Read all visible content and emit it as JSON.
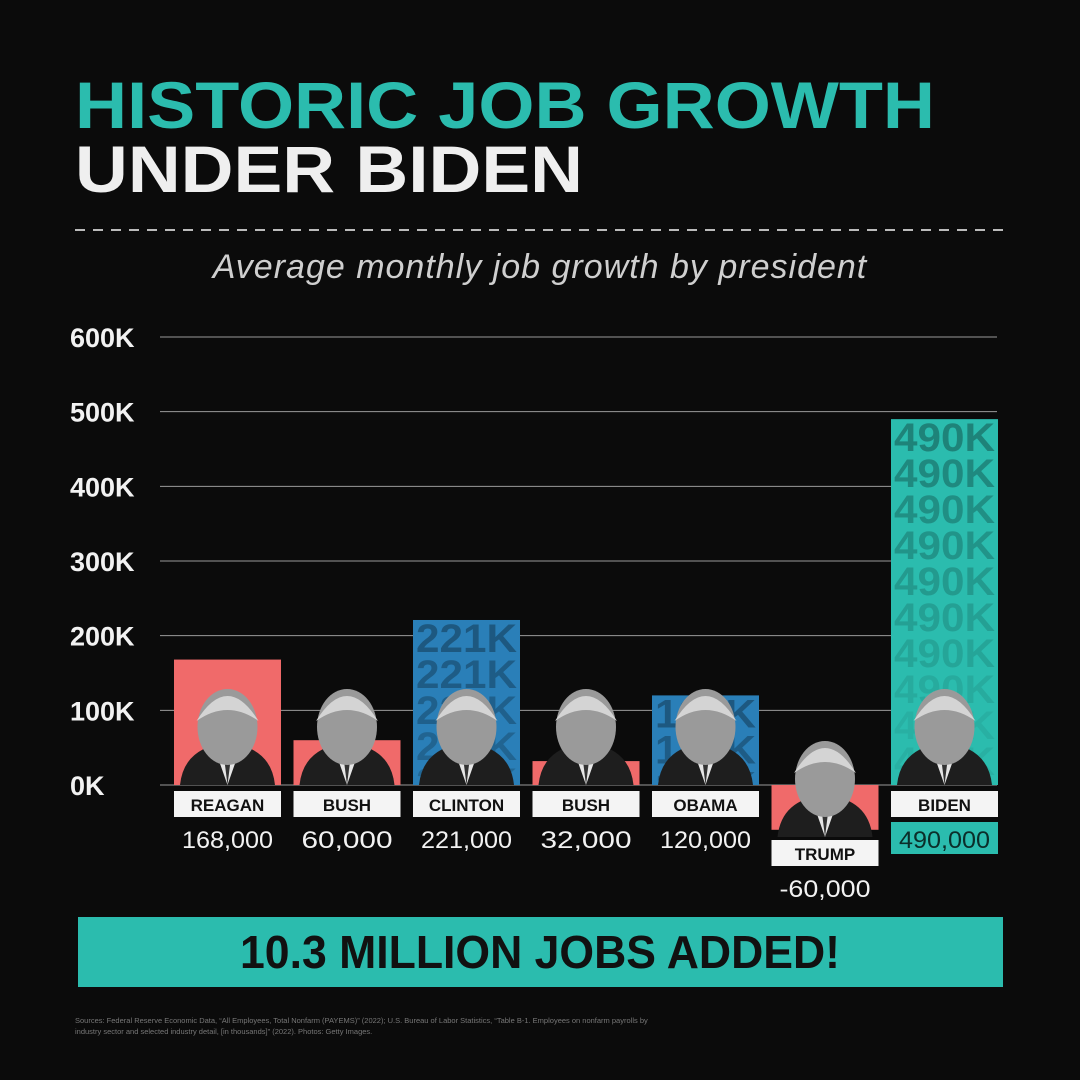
{
  "chart_data": {
    "type": "bar",
    "title": [
      "HISTORIC JOB GROWTH",
      "UNDER BIDEN"
    ],
    "subtitle": "Average monthly job growth by president",
    "categories": [
      "REAGAN",
      "BUSH",
      "CLINTON",
      "BUSH",
      "OBAMA",
      "TRUMP",
      "BIDEN"
    ],
    "values": [
      168000,
      60000,
      221000,
      32000,
      120000,
      -60000,
      490000
    ],
    "value_labels": [
      "168,000",
      "60,000",
      "221,000",
      "32,000",
      "120,000",
      "-60,000",
      "490,000"
    ],
    "bar_watermarks": [
      null,
      null,
      "221K",
      null,
      "120K",
      null,
      "490K"
    ],
    "colors": [
      "#f06a6a",
      "#f06a6a",
      "#2a7fb8",
      "#f06a6a",
      "#2a7fb8",
      "#f06a6a",
      "#2bbcae"
    ],
    "ylim": [
      0,
      600000
    ],
    "yticks": [
      {
        "value": 0,
        "label": "0K"
      },
      {
        "value": 100000,
        "label": "100K"
      },
      {
        "value": 200000,
        "label": "200K"
      },
      {
        "value": 300000,
        "label": "300K"
      },
      {
        "value": 400000,
        "label": "400K"
      },
      {
        "value": 500000,
        "label": "500K"
      },
      {
        "value": 600000,
        "label": "600K"
      }
    ],
    "grid": true,
    "banner": "10.3 MILLION JOBS ADDED!",
    "sources": [
      "Sources: Federal Reserve Economic Data, “All Employees, Total Nonfarm (PAYEMS)” (2022); U.S. Bureau of Labor Statistics, “Table B-1. Employees on nonfarm payrolls by",
      "industry sector and selected industry detail, [in thousands]” (2022). Photos: Getty Images."
    ]
  }
}
